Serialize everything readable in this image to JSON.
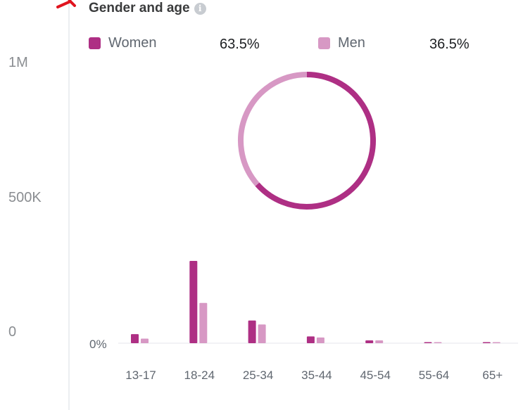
{
  "title": "Gender and age",
  "info_icon": "info-icon",
  "y_axis_labels": [
    "1M",
    "500K",
    "0"
  ],
  "colors": {
    "women": "#ae2f84",
    "men": "#d798c4",
    "baseline": "#e4e6eb",
    "axis_text": "#606770"
  },
  "legend": [
    {
      "label": "Women",
      "value": "63.5%"
    },
    {
      "label": "Men",
      "value": "36.5%"
    }
  ],
  "chart_data": [
    {
      "type": "pie",
      "donut": true,
      "labels": [
        "Women",
        "Men"
      ],
      "values": [
        63.5,
        36.5
      ]
    },
    {
      "type": "bar",
      "categories": [
        "13-17",
        "18-24",
        "25-34",
        "35-44",
        "45-54",
        "55-64",
        "65+"
      ],
      "series": [
        {
          "name": "Women",
          "values": [
            1.6,
            14.5,
            4.0,
            1.2,
            0.5,
            0.1,
            0.1
          ]
        },
        {
          "name": "Men",
          "values": [
            0.8,
            7.1,
            3.3,
            1.0,
            0.5,
            0.1,
            0.1
          ]
        }
      ],
      "ytick_label": "0%"
    }
  ]
}
